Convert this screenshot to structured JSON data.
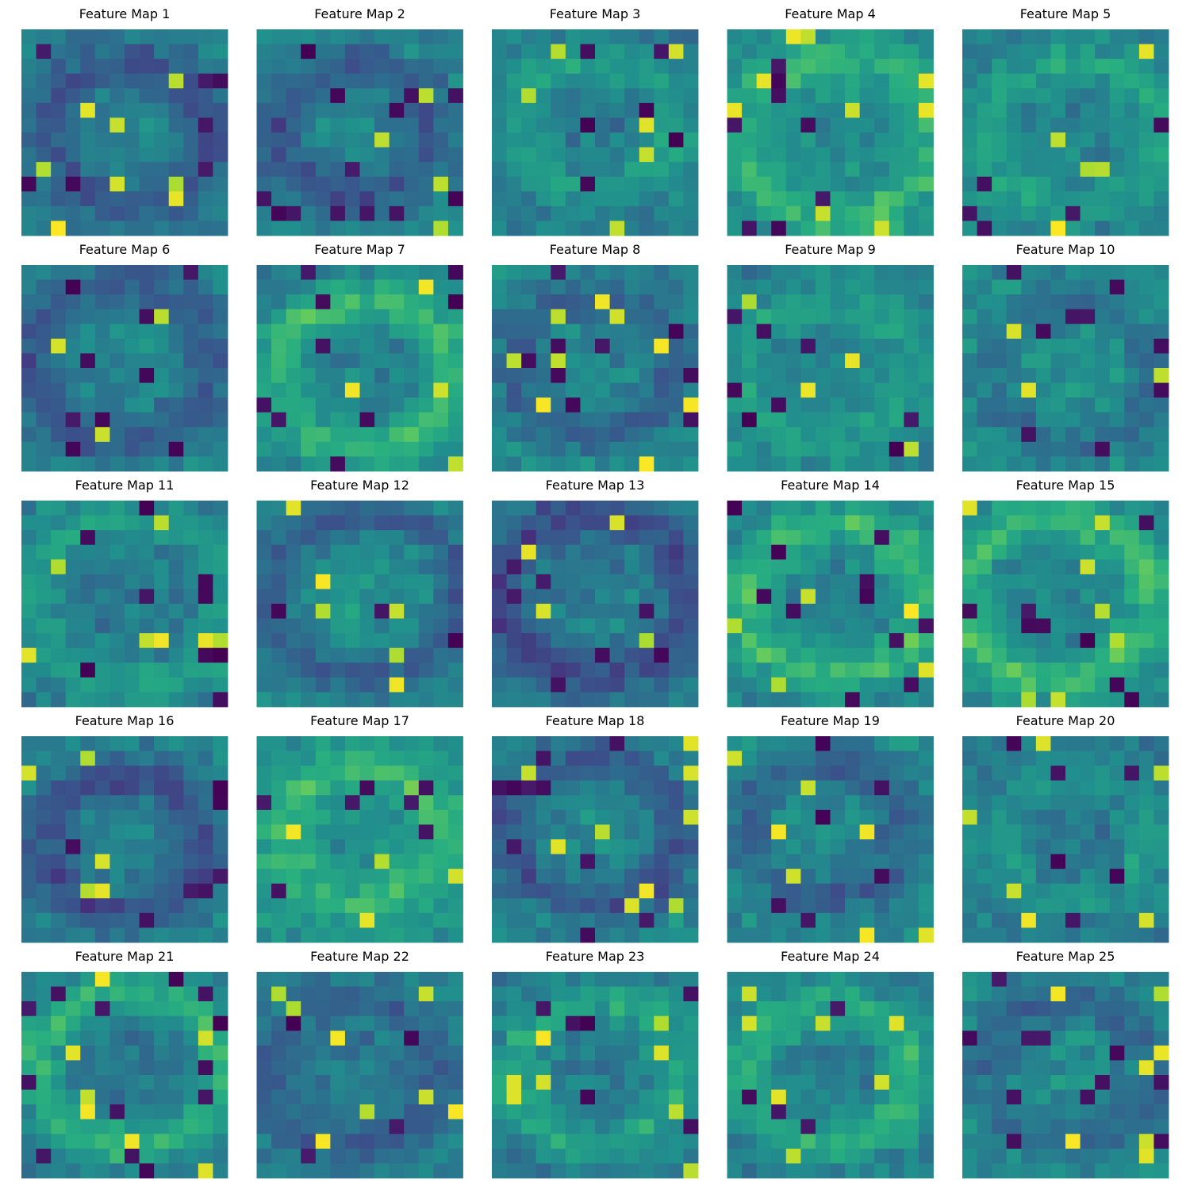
{
  "chart_data": {
    "type": "heatmap",
    "colormap": "viridis",
    "grid_rows": 5,
    "grid_cols": 5,
    "map_rows": 14,
    "map_cols": 14,
    "axes_visible": false,
    "colorbar": false,
    "value_range": [
      0,
      1
    ],
    "titles": [
      "Feature Map 1",
      "Feature Map 2",
      "Feature Map 3",
      "Feature Map 4",
      "Feature Map 5",
      "Feature Map 6",
      "Feature Map 7",
      "Feature Map 8",
      "Feature Map 9",
      "Feature Map 10",
      "Feature Map 11",
      "Feature Map 12",
      "Feature Map 13",
      "Feature Map 14",
      "Feature Map 15",
      "Feature Map 16",
      "Feature Map 17",
      "Feature Map 18",
      "Feature Map 19",
      "Feature Map 20",
      "Feature Map 21",
      "Feature Map 22",
      "Feature Map 23",
      "Feature Map 24",
      "Feature Map 25"
    ],
    "generator": {
      "description": "approximate 14x14 activation values per map (0=dark purple, 1=yellow)",
      "seed": 1337
    }
  }
}
